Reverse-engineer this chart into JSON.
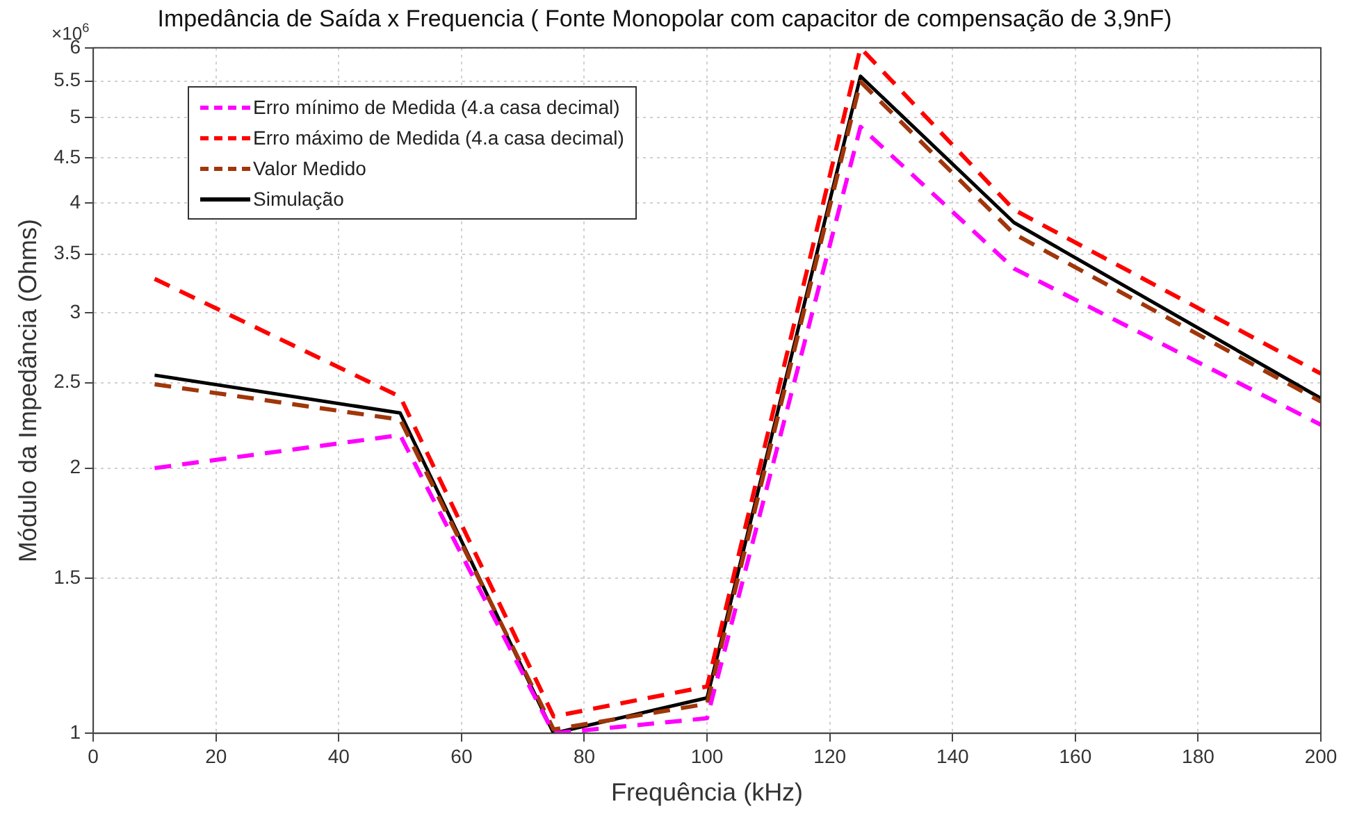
{
  "chart_data": {
    "type": "line",
    "title": "Impedância de Saída x Frequencia ( Fonte Monopolar com capacitor de compensação de 3,9nF)",
    "xlabel": "Frequência (kHz)",
    "ylabel": "Módulo da Impedância (Ohms)",
    "annotations": [
      "×10$^{6}$"
    ],
    "x": [
      10,
      50,
      75,
      100,
      125,
      150,
      200
    ],
    "series": [
      {
        "name": "Erro mínimo de Medida (4.a casa decimal)",
        "color": "#ff00ff",
        "line_style": "dashed",
        "values": [
          2.0,
          2.18,
          1.0,
          1.04,
          4.88,
          3.37,
          2.24
        ]
      },
      {
        "name": "Erro máximo de Medida (4.a casa decimal)",
        "color": "#ff0000",
        "line_style": "dashed",
        "values": [
          3.28,
          2.41,
          1.045,
          1.13,
          6.0,
          3.93,
          2.56
        ]
      },
      {
        "name": "Valor Medido",
        "color": "#a0360a",
        "line_style": "dashed",
        "values": [
          2.49,
          2.27,
          1.01,
          1.08,
          5.49,
          3.69,
          2.38
        ]
      },
      {
        "name": "Simulação",
        "color": "#000000",
        "line_style": "solid",
        "values": [
          2.55,
          2.31,
          1.0,
          1.097,
          5.57,
          3.8,
          2.4
        ]
      }
    ],
    "log": "y",
    "xlim": [
      0,
      200
    ],
    "xticks": [
      0,
      20,
      40,
      60,
      80,
      100,
      120,
      140,
      160,
      180,
      200
    ],
    "ylim": [
      1,
      6
    ],
    "yticks": [
      1,
      1.5,
      2,
      2.5,
      3,
      3.5,
      4,
      4.5,
      5,
      5.5,
      6
    ],
    "grid": true,
    "legend": "top left",
    "marker": "none"
  }
}
